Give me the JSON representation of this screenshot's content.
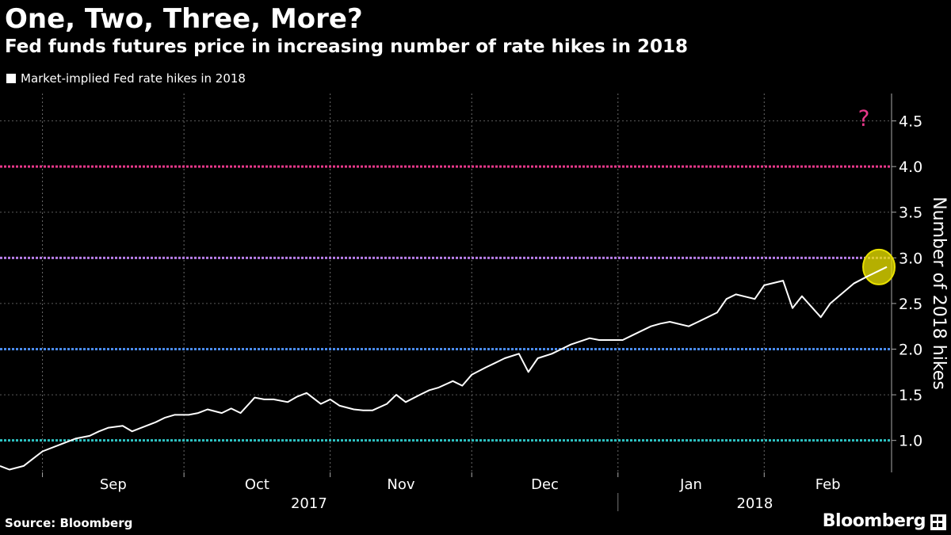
{
  "header": {
    "title": "One, Two, Three, More?",
    "subtitle": "Fed funds futures price in increasing number of rate hikes in 2018"
  },
  "footer": {
    "source": "Source: Bloomberg",
    "brand": "Bloomberg"
  },
  "colors": {
    "background": "#000000",
    "line": "#ffffff",
    "ref_1": "#2ec4c4",
    "ref_2": "#4a8cf0",
    "ref_3": "#b77ee8",
    "ref_4": "#e8388a",
    "highlight": "#e8e000",
    "question": "#e8388a"
  },
  "chart_data": {
    "type": "line",
    "legend": "Market-implied Fed rate hikes in 2018",
    "legend_position": "top-left",
    "ylabel": "Number of 2018 hikes",
    "ylim": [
      0.65,
      4.8
    ],
    "yticks": [
      "1.0",
      "1.5",
      "2.0",
      "2.5",
      "3.0",
      "3.5",
      "4.0",
      "4.5"
    ],
    "xlim": [
      "2017-08-23",
      "2018-02-28"
    ],
    "months": [
      "Sep",
      "Oct",
      "Nov",
      "Dec",
      "Jan",
      "Feb"
    ],
    "years": [
      "2017",
      "2018"
    ],
    "reference_lines": [
      1,
      2,
      3,
      4
    ],
    "annotation": "?",
    "highlight_value": 2.9,
    "series": [
      {
        "x": [
          "2017-08-23",
          "2017-08-25",
          "2017-08-28",
          "2017-08-30",
          "2017-09-01",
          "2017-09-05",
          "2017-09-08",
          "2017-09-11",
          "2017-09-13",
          "2017-09-15",
          "2017-09-18",
          "2017-09-20",
          "2017-09-22",
          "2017-09-25",
          "2017-09-27",
          "2017-09-29",
          "2017-10-02",
          "2017-10-04",
          "2017-10-06",
          "2017-10-09",
          "2017-10-11",
          "2017-10-13",
          "2017-10-16",
          "2017-10-18",
          "2017-10-20",
          "2017-10-23",
          "2017-10-25",
          "2017-10-27",
          "2017-10-30",
          "2017-11-01",
          "2017-11-03",
          "2017-11-06",
          "2017-11-08",
          "2017-11-10",
          "2017-11-13",
          "2017-11-15",
          "2017-11-17",
          "2017-11-20",
          "2017-11-22",
          "2017-11-24",
          "2017-11-27",
          "2017-11-29",
          "2017-12-01",
          "2017-12-04",
          "2017-12-06",
          "2017-12-08",
          "2017-12-11",
          "2017-12-13",
          "2017-12-15",
          "2017-12-18",
          "2017-12-20",
          "2017-12-22",
          "2017-12-26",
          "2017-12-28",
          "2018-01-02",
          "2018-01-04",
          "2018-01-08",
          "2018-01-10",
          "2018-01-12",
          "2018-01-16",
          "2018-01-18",
          "2018-01-22",
          "2018-01-24",
          "2018-01-26",
          "2018-01-30",
          "2018-02-01",
          "2018-02-05",
          "2018-02-07",
          "2018-02-09",
          "2018-02-13",
          "2018-02-15",
          "2018-02-20",
          "2018-02-23",
          "2018-02-27"
        ],
        "y": [
          0.72,
          0.68,
          0.72,
          0.8,
          0.88,
          0.96,
          1.02,
          1.05,
          1.1,
          1.14,
          1.16,
          1.1,
          1.14,
          1.2,
          1.25,
          1.28,
          1.28,
          1.3,
          1.34,
          1.3,
          1.35,
          1.3,
          1.47,
          1.45,
          1.45,
          1.42,
          1.48,
          1.52,
          1.4,
          1.45,
          1.38,
          1.34,
          1.33,
          1.33,
          1.4,
          1.5,
          1.42,
          1.5,
          1.55,
          1.58,
          1.65,
          1.6,
          1.72,
          1.8,
          1.85,
          1.9,
          1.95,
          1.75,
          1.9,
          1.95,
          2.0,
          2.05,
          2.12,
          2.1,
          2.1,
          2.15,
          2.25,
          2.28,
          2.3,
          2.25,
          2.3,
          2.4,
          2.55,
          2.6,
          2.55,
          2.7,
          2.75,
          2.45,
          2.58,
          2.35,
          2.5,
          2.72,
          2.8,
          2.9
        ]
      }
    ]
  }
}
